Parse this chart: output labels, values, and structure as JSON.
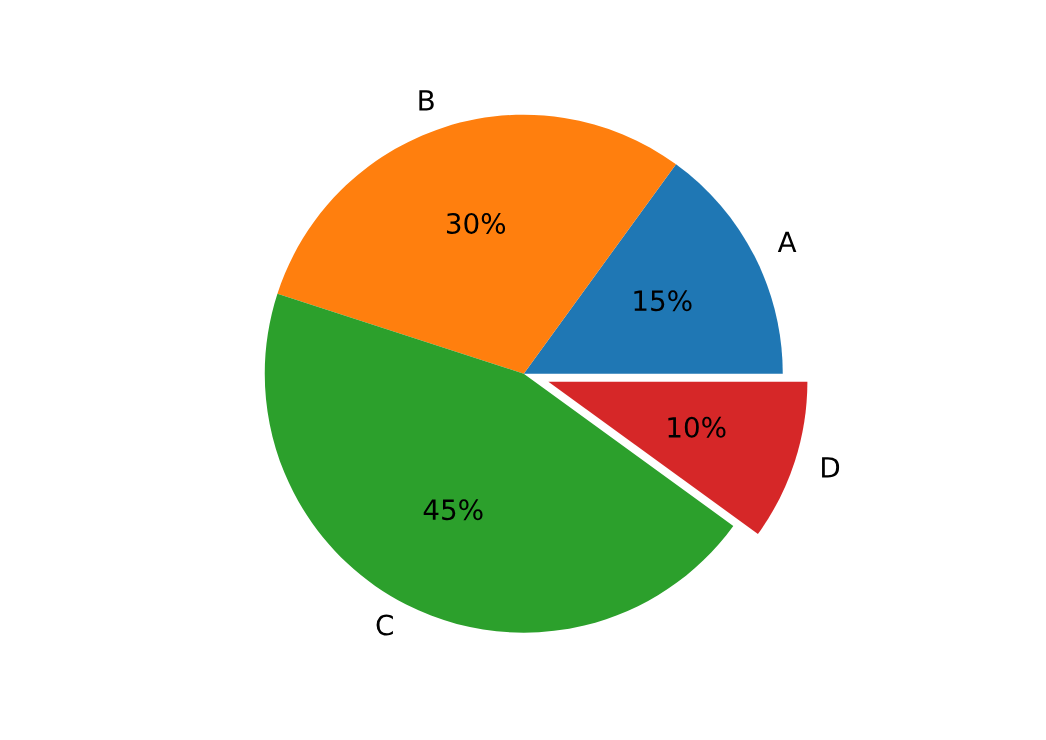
{
  "chart_data": {
    "type": "pie",
    "categories": [
      "A",
      "B",
      "C",
      "D"
    ],
    "values": [
      15,
      30,
      45,
      10
    ],
    "colors": [
      "#1f77b4",
      "#ff7f0e",
      "#2ca02c",
      "#d62728"
    ],
    "value_labels": [
      "15%",
      "30%",
      "45%",
      "10%"
    ]
  }
}
